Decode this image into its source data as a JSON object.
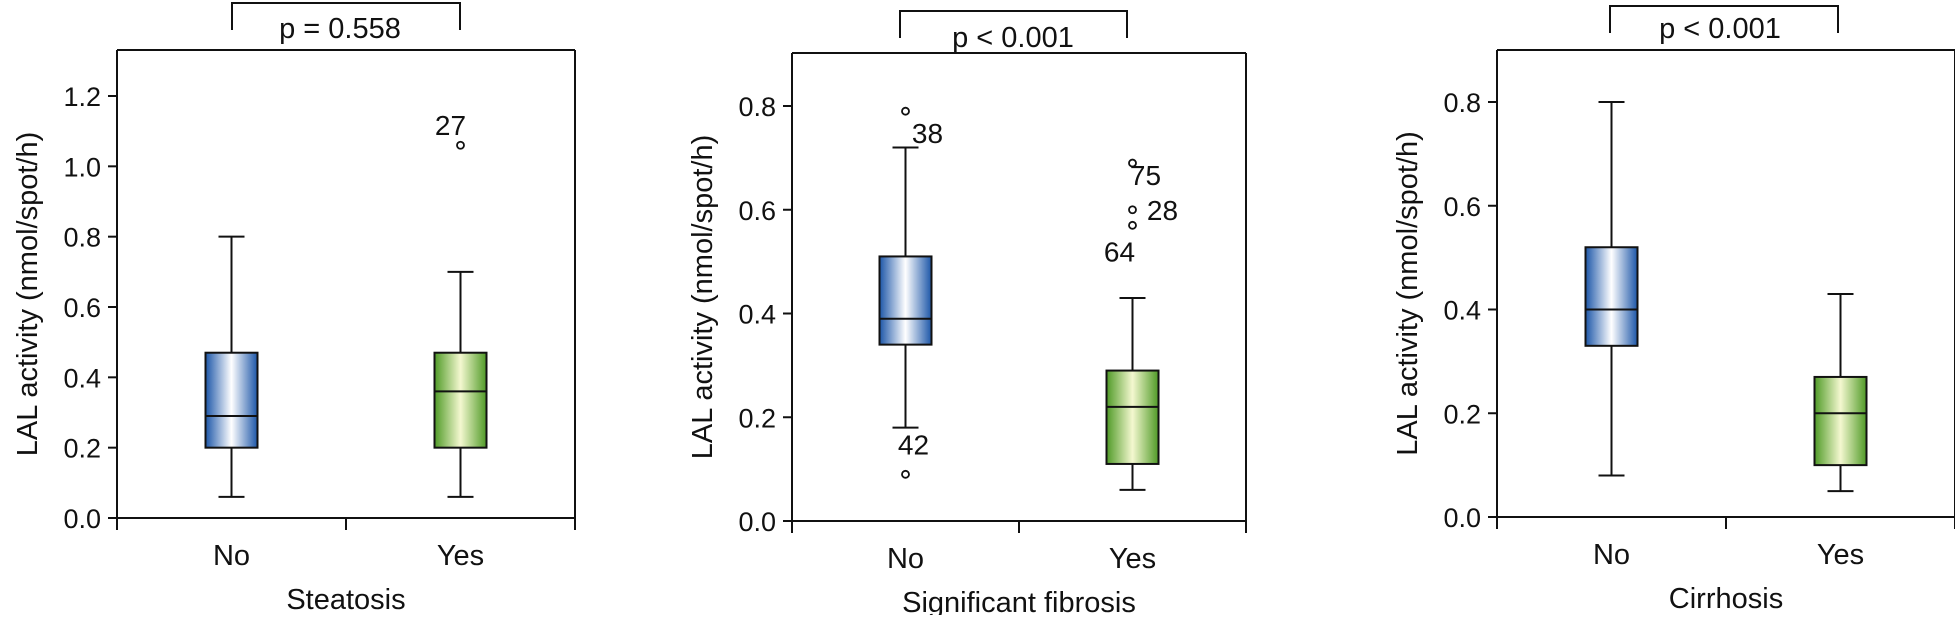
{
  "chart_data": [
    {
      "type": "box",
      "ylabel": "LAL activity (nmol/spot/h)",
      "xlabel": "Steatosis",
      "ylim": [
        0,
        1.3
      ],
      "yticks": [
        "0.0",
        "0.2",
        "0.4",
        "0.6",
        "0.8",
        "1.0",
        "1.2"
      ],
      "categories": [
        "No",
        "Yes"
      ],
      "p_value": "p = 0.558",
      "boxes": [
        {
          "category": "No",
          "color": "blue",
          "whisker_low": 0.06,
          "q1": 0.2,
          "median": 0.29,
          "q3": 0.47,
          "whisker_high": 0.8,
          "outliers": []
        },
        {
          "category": "Yes",
          "color": "green",
          "whisker_low": 0.06,
          "q1": 0.2,
          "median": 0.36,
          "q3": 0.47,
          "whisker_high": 0.7,
          "outliers": [
            {
              "value": 1.06,
              "label": "27"
            }
          ]
        }
      ]
    },
    {
      "type": "box",
      "ylabel": "LAL activity (nmol/spot/h)",
      "xlabel": "Significant fibrosis",
      "ylim": [
        0,
        0.88
      ],
      "yticks": [
        "0.0",
        "0.2",
        "0.4",
        "0.6",
        "0.8"
      ],
      "categories": [
        "No",
        "Yes"
      ],
      "p_value": "p < 0.001",
      "boxes": [
        {
          "category": "No",
          "color": "blue",
          "whisker_low": 0.18,
          "q1": 0.34,
          "median": 0.39,
          "q3": 0.51,
          "whisker_high": 0.72,
          "outliers": [
            {
              "value": 0.79,
              "label": "38"
            },
            {
              "value": 0.09,
              "label": "42"
            }
          ]
        },
        {
          "category": "Yes",
          "color": "green",
          "whisker_low": 0.06,
          "q1": 0.11,
          "median": 0.22,
          "q3": 0.29,
          "whisker_high": 0.43,
          "outliers": [
            {
              "value": 0.69,
              "label": "75"
            },
            {
              "value": 0.6,
              "label": "28"
            },
            {
              "value": 0.57,
              "label": "64"
            }
          ]
        }
      ]
    },
    {
      "type": "box",
      "ylabel": "LAL activity (nmol/spot/h)",
      "xlabel": "Cirrhosis",
      "ylim": [
        0,
        0.89
      ],
      "yticks": [
        "0.0",
        "0.2",
        "0.4",
        "0.6",
        "0.8"
      ],
      "categories": [
        "No",
        "Yes"
      ],
      "p_value": "p < 0.001",
      "boxes": [
        {
          "category": "No",
          "color": "blue",
          "whisker_low": 0.08,
          "q1": 0.33,
          "median": 0.4,
          "q3": 0.52,
          "whisker_high": 0.8,
          "outliers": []
        },
        {
          "category": "Yes",
          "color": "green",
          "whisker_low": 0.05,
          "q1": 0.1,
          "median": 0.2,
          "q3": 0.27,
          "whisker_high": 0.43,
          "outliers": []
        }
      ]
    }
  ],
  "colors": {
    "blue_dark": "#1c56a8",
    "blue_light": "#ffffff",
    "green_dark": "#4f9a26",
    "green_light": "#f4f8d0",
    "line": "#111111"
  }
}
